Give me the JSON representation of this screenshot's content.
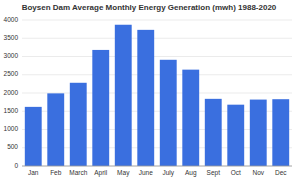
{
  "chart_data": {
    "type": "bar",
    "title": "Boysen Dam Average Monthly Energy Generation (mwh) 1988-2020",
    "categories": [
      "Jan",
      "Feb",
      "March",
      "April",
      "May",
      "June",
      "July",
      "Aug",
      "Sept",
      "Oct",
      "Nov",
      "Dec"
    ],
    "values": [
      1620,
      1990,
      2280,
      3180,
      3870,
      3730,
      2910,
      2640,
      1840,
      1680,
      1820,
      1830
    ],
    "color": "#3a6fdf",
    "ylim": [
      0,
      4000
    ],
    "yticks": [
      0,
      500,
      1000,
      1500,
      2000,
      2500,
      3000,
      3500,
      4000
    ],
    "grid": true
  }
}
